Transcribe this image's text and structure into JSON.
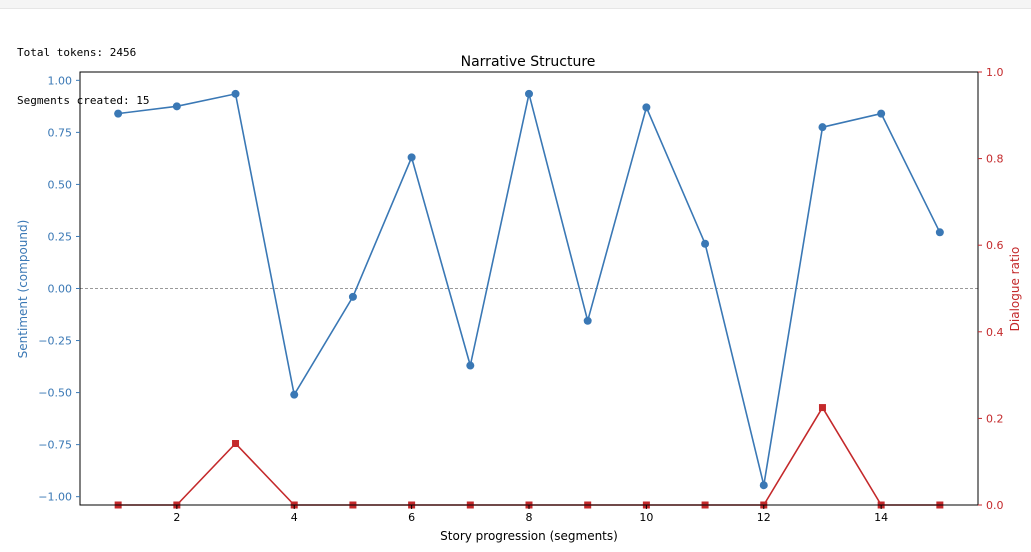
{
  "console": {
    "lines": [
      "Total tokens: 2456",
      "Segments created: 15"
    ]
  },
  "colors": {
    "sentiment": "#3a78b5",
    "dialogue": "#c4292b",
    "zero_line": "#999999"
  },
  "chart_data": {
    "type": "line",
    "title": "Narrative Structure",
    "xlabel": "Story progression (segments)",
    "ylabel_left": "Sentiment (compound)",
    "ylabel_right": "Dialogue ratio",
    "xlim": [
      0.35,
      15.65
    ],
    "ylim_left": [
      -1.04,
      1.04
    ],
    "ylim_right": [
      0.0,
      1.0
    ],
    "x_ticks": [
      2,
      4,
      6,
      8,
      10,
      12,
      14
    ],
    "y_ticks_left": [
      1.0,
      0.75,
      0.5,
      0.25,
      0.0,
      -0.25,
      -0.5,
      -0.75,
      -1.0
    ],
    "y_tick_labels_left": [
      "1.00",
      "0.75",
      "0.50",
      "0.25",
      "0.00",
      "−0.25",
      "−0.50",
      "−0.75",
      "−1.00"
    ],
    "y_ticks_right": [
      0.0,
      0.2,
      0.4,
      0.6,
      0.8,
      1.0
    ],
    "y_tick_labels_right": [
      "0.0",
      "0.2",
      "0.4",
      "0.6",
      "0.8",
      "1.0"
    ],
    "zero_line": true,
    "x": [
      1,
      2,
      3,
      4,
      5,
      6,
      7,
      8,
      9,
      10,
      11,
      12,
      13,
      14,
      15
    ],
    "series": [
      {
        "axis": "left",
        "marker": "circle",
        "values": [
          0.84,
          0.875,
          0.935,
          -0.51,
          -0.04,
          0.63,
          -0.37,
          0.935,
          -0.155,
          0.87,
          0.215,
          -0.945,
          0.775,
          0.84,
          0.27
        ]
      },
      {
        "axis": "right",
        "marker": "square",
        "values": [
          0.0,
          0.0,
          0.142,
          0.0,
          0.0,
          0.0,
          0.0,
          0.0,
          0.0,
          0.0,
          0.0,
          0.0,
          0.225,
          0.0,
          0.0
        ]
      }
    ]
  }
}
